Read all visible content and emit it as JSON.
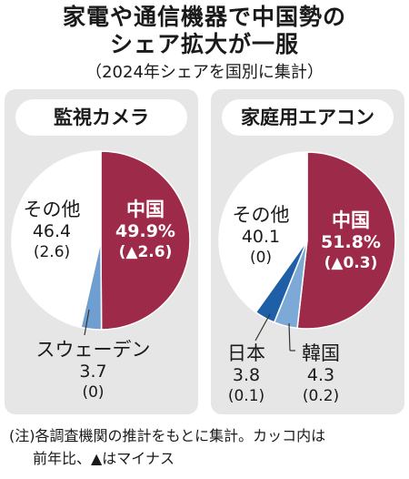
{
  "title_line1": "家電や通信機器で中国勢の",
  "title_line2": "シェア拡大が一服",
  "subtitle": "（2024年シェアを国別に集計）",
  "footnote_line1": "(注)各調査機関の推計をもとに集計。カッコ内は",
  "footnote_line2": "前年比、▲はマイナス",
  "colors": {
    "china": "#9e2a4a",
    "other": "#ffffff",
    "japan": "#1f5fa8",
    "korea": "#7da9d6",
    "sweden": "#6f9fd0",
    "panel_bg": "#e6e6e6"
  },
  "chart_data": [
    {
      "type": "pie",
      "title": "監視カメラ",
      "slices": [
        {
          "name": "中国",
          "value": 49.9,
          "value_label": "49.9%",
          "change": "(▲2.6)"
        },
        {
          "name": "スウェーデン",
          "value": 3.7,
          "value_label": "3.7",
          "change": "(0)"
        },
        {
          "name": "その他",
          "value": 46.4,
          "value_label": "46.4",
          "change": "(2.6)"
        }
      ]
    },
    {
      "type": "pie",
      "title": "家庭用エアコン",
      "slices": [
        {
          "name": "中国",
          "value": 51.8,
          "value_label": "51.8%",
          "change": "(▲0.3)"
        },
        {
          "name": "韓国",
          "value": 4.3,
          "value_label": "4.3",
          "change": "(0.2)"
        },
        {
          "name": "日本",
          "value": 3.8,
          "value_label": "3.8",
          "change": "(0.1)"
        },
        {
          "name": "その他",
          "value": 40.1,
          "value_label": "40.1",
          "change": "(0)"
        }
      ]
    }
  ]
}
